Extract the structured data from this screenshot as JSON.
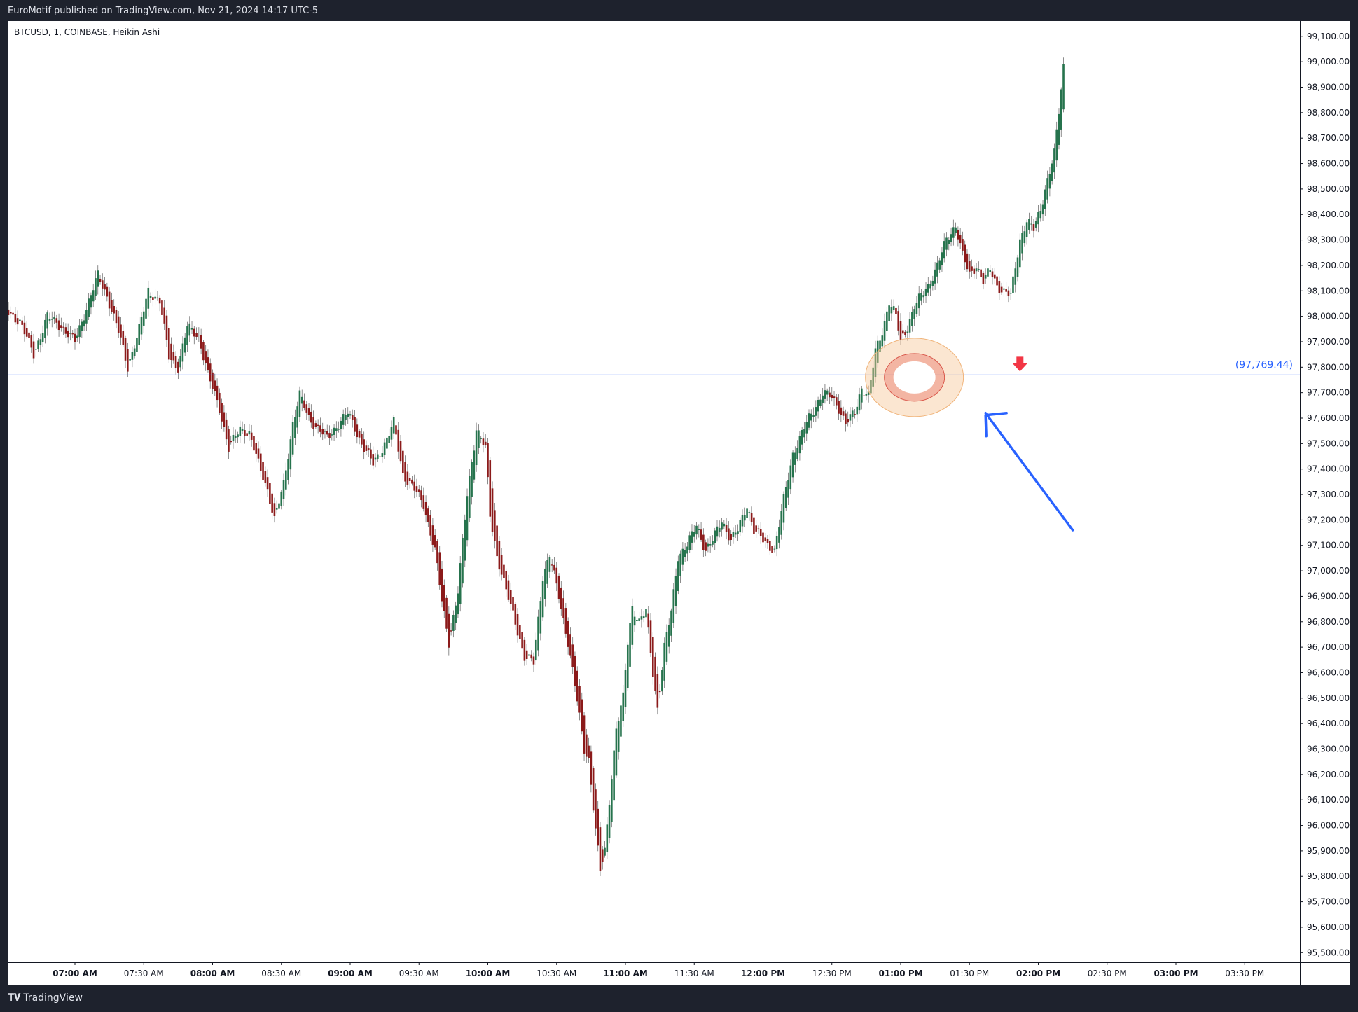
{
  "header": {
    "published_text": "EuroMotif published on TradingView.com, Nov 21, 2024 14:17 UTC-5"
  },
  "footer": {
    "brand": "TradingView",
    "logo_icon": "tradingview-logo-icon"
  },
  "colors": {
    "up": "#26734d",
    "down": "#8b1a1a",
    "level_line": "#2962ff",
    "level_label": "#2962ff",
    "arrow": "#2962ff",
    "marker": "#f23645",
    "highlight_outer": "#f7c79a",
    "highlight_inner": "#e8796a"
  },
  "chart_data": {
    "type": "candlestick",
    "symbol_label": "BTCUSD, 1, COINBASE, Heikin Ashi",
    "style": "Heikin Ashi",
    "interval_minutes": 1,
    "ylim": [
      95410,
      99160
    ],
    "y_ticks": [
      {
        "value": 99100,
        "label": "99,100.00"
      },
      {
        "value": 99000,
        "label": "99,000.00"
      },
      {
        "value": 98900,
        "label": "98,900.00"
      },
      {
        "value": 98800,
        "label": "98,800.00"
      },
      {
        "value": 98700,
        "label": "98,700.00"
      },
      {
        "value": 98600,
        "label": "98,600.00"
      },
      {
        "value": 98500,
        "label": "98,500.00"
      },
      {
        "value": 98400,
        "label": "98,400.00"
      },
      {
        "value": 98300,
        "label": "98,300.00"
      },
      {
        "value": 98200,
        "label": "98,200.00"
      },
      {
        "value": 98100,
        "label": "98,100.00"
      },
      {
        "value": 98000,
        "label": "98,000.00"
      },
      {
        "value": 97900,
        "label": "97,900.00"
      },
      {
        "value": 97800,
        "label": "97,800.00"
      },
      {
        "value": 97700,
        "label": "97,700.00"
      },
      {
        "value": 97600,
        "label": "97,600.00"
      },
      {
        "value": 97500,
        "label": "97,500.00"
      },
      {
        "value": 97400,
        "label": "97,400.00"
      },
      {
        "value": 97300,
        "label": "97,300.00"
      },
      {
        "value": 97200,
        "label": "97,200.00"
      },
      {
        "value": 97100,
        "label": "97,100.00"
      },
      {
        "value": 97000,
        "label": "97,000.00"
      },
      {
        "value": 96900,
        "label": "96,900.00"
      },
      {
        "value": 96800,
        "label": "96,800.00"
      },
      {
        "value": 96700,
        "label": "96,700.00"
      },
      {
        "value": 96600,
        "label": "96,600.00"
      },
      {
        "value": 96500,
        "label": "96,500.00"
      },
      {
        "value": 96400,
        "label": "96,400.00"
      },
      {
        "value": 96300,
        "label": "96,300.00"
      },
      {
        "value": 96200,
        "label": "96,200.00"
      },
      {
        "value": 96100,
        "label": "96,100.00"
      },
      {
        "value": 96000,
        "label": "96,000.00"
      },
      {
        "value": 95900,
        "label": "95,900.00"
      },
      {
        "value": 95800,
        "label": "95,800.00"
      },
      {
        "value": 95700,
        "label": "95,700.00"
      },
      {
        "value": 95600,
        "label": "95,600.00"
      },
      {
        "value": 95500,
        "label": "95,500.00"
      }
    ],
    "x_ticks": [
      {
        "time": "07:00 AM",
        "bold": true
      },
      {
        "time": "07:30 AM",
        "bold": false
      },
      {
        "time": "08:00 AM",
        "bold": true
      },
      {
        "time": "08:30 AM",
        "bold": false
      },
      {
        "time": "09:00 AM",
        "bold": true
      },
      {
        "time": "09:30 AM",
        "bold": false
      },
      {
        "time": "10:00 AM",
        "bold": true
      },
      {
        "time": "10:30 AM",
        "bold": false
      },
      {
        "time": "11:00 AM",
        "bold": true
      },
      {
        "time": "11:30 AM",
        "bold": false
      },
      {
        "time": "12:00 PM",
        "bold": true
      },
      {
        "time": "12:30 PM",
        "bold": false
      },
      {
        "time": "01:00 PM",
        "bold": true
      },
      {
        "time": "01:30 PM",
        "bold": false
      },
      {
        "time": "02:00 PM",
        "bold": true
      },
      {
        "time": "02:30 PM",
        "bold": false
      },
      {
        "time": "03:00 PM",
        "bold": true
      },
      {
        "time": "03:30 PM",
        "bold": false
      }
    ],
    "x_tick_start_minute": 420,
    "x_tick_step_minutes": 30,
    "price_path": [
      {
        "t": "06:30 AM",
        "p": 98020
      },
      {
        "t": "06:36 AM",
        "p": 97980
      },
      {
        "t": "06:42 AM",
        "p": 97850
      },
      {
        "t": "06:48 AM",
        "p": 98000
      },
      {
        "t": "06:54 AM",
        "p": 97960
      },
      {
        "t": "07:00 AM",
        "p": 97900
      },
      {
        "t": "07:06 AM",
        "p": 98060
      },
      {
        "t": "07:10 AM",
        "p": 98160
      },
      {
        "t": "07:14 AM",
        "p": 98080
      },
      {
        "t": "07:19 AM",
        "p": 97940
      },
      {
        "t": "07:23 AM",
        "p": 97800
      },
      {
        "t": "07:28 AM",
        "p": 97950
      },
      {
        "t": "07:32 AM",
        "p": 98100
      },
      {
        "t": "07:37 AM",
        "p": 98060
      },
      {
        "t": "07:41 AM",
        "p": 97840
      },
      {
        "t": "07:45 AM",
        "p": 97800
      },
      {
        "t": "07:49 AM",
        "p": 97960
      },
      {
        "t": "07:54 AM",
        "p": 97920
      },
      {
        "t": "07:58 AM",
        "p": 97770
      },
      {
        "t": "08:03 AM",
        "p": 97640
      },
      {
        "t": "08:07 AM",
        "p": 97480
      },
      {
        "t": "08:12 AM",
        "p": 97560
      },
      {
        "t": "08:16 AM",
        "p": 97540
      },
      {
        "t": "08:20 AM",
        "p": 97420
      },
      {
        "t": "08:24 AM",
        "p": 97320
      },
      {
        "t": "08:27 AM",
        "p": 97200
      },
      {
        "t": "08:31 AM",
        "p": 97340
      },
      {
        "t": "08:35 AM",
        "p": 97580
      },
      {
        "t": "08:38 AM",
        "p": 97690
      },
      {
        "t": "08:42 AM",
        "p": 97600
      },
      {
        "t": "08:46 AM",
        "p": 97560
      },
      {
        "t": "08:50 AM",
        "p": 97520
      },
      {
        "t": "08:55 AM",
        "p": 97580
      },
      {
        "t": "08:59 AM",
        "p": 97620
      },
      {
        "t": "09:05 AM",
        "p": 97500
      },
      {
        "t": "09:10 AM",
        "p": 97420
      },
      {
        "t": "09:14 AM",
        "p": 97480
      },
      {
        "t": "09:19 AM",
        "p": 97580
      },
      {
        "t": "09:23 AM",
        "p": 97380
      },
      {
        "t": "09:28 AM",
        "p": 97320
      },
      {
        "t": "09:32 AM",
        "p": 97260
      },
      {
        "t": "09:37 AM",
        "p": 97080
      },
      {
        "t": "09:40 AM",
        "p": 96880
      },
      {
        "t": "09:43 AM",
        "p": 96720
      },
      {
        "t": "09:47 AM",
        "p": 96920
      },
      {
        "t": "09:51 AM",
        "p": 97300
      },
      {
        "t": "09:55 AM",
        "p": 97560
      },
      {
        "t": "09:59 AM",
        "p": 97480
      },
      {
        "t": "10:01 AM",
        "p": 97220
      },
      {
        "t": "10:04 AM",
        "p": 97060
      },
      {
        "t": "10:08 AM",
        "p": 96920
      },
      {
        "t": "10:12 AM",
        "p": 96800
      },
      {
        "t": "10:16 AM",
        "p": 96660
      },
      {
        "t": "10:20 AM",
        "p": 96640
      },
      {
        "t": "10:24 AM",
        "p": 96980
      },
      {
        "t": "10:27 AM",
        "p": 97060
      },
      {
        "t": "10:31 AM",
        "p": 96900
      },
      {
        "t": "10:35 AM",
        "p": 96720
      },
      {
        "t": "10:38 AM",
        "p": 96550
      },
      {
        "t": "10:42 AM",
        "p": 96300
      },
      {
        "t": "10:44 AM",
        "p": 96260
      },
      {
        "t": "10:47 AM",
        "p": 95980
      },
      {
        "t": "10:49 AM",
        "p": 95820
      },
      {
        "t": "10:51 AM",
        "p": 95900
      },
      {
        "t": "10:53 AM",
        "p": 96100
      },
      {
        "t": "10:56 AM",
        "p": 96380
      },
      {
        "t": "10:59 AM",
        "p": 96500
      },
      {
        "t": "11:01 AM",
        "p": 96720
      },
      {
        "t": "11:03 AM",
        "p": 96860
      },
      {
        "t": "11:06 AM",
        "p": 96800
      },
      {
        "t": "11:09 AM",
        "p": 96840
      },
      {
        "t": "11:12 AM",
        "p": 96600
      },
      {
        "t": "11:14 AM",
        "p": 96460
      },
      {
        "t": "11:17 AM",
        "p": 96700
      },
      {
        "t": "11:20 AM",
        "p": 96840
      },
      {
        "t": "11:23 AM",
        "p": 97060
      },
      {
        "t": "11:27 AM",
        "p": 97100
      },
      {
        "t": "11:31 AM",
        "p": 97180
      },
      {
        "t": "11:35 AM",
        "p": 97080
      },
      {
        "t": "11:38 AM",
        "p": 97120
      },
      {
        "t": "11:42 AM",
        "p": 97200
      },
      {
        "t": "11:46 AM",
        "p": 97120
      },
      {
        "t": "11:49 AM",
        "p": 97160
      },
      {
        "t": "11:53 AM",
        "p": 97260
      },
      {
        "t": "11:56 AM",
        "p": 97160
      },
      {
        "t": "12:00 PM",
        "p": 97120
      },
      {
        "t": "12:05 PM",
        "p": 97080
      },
      {
        "t": "12:09 PM",
        "p": 97280
      },
      {
        "t": "12:13 PM",
        "p": 97460
      },
      {
        "t": "12:17 PM",
        "p": 97540
      },
      {
        "t": "12:20 PM",
        "p": 97600
      },
      {
        "t": "12:23 PM",
        "p": 97650
      },
      {
        "t": "12:26 PM",
        "p": 97700
      },
      {
        "t": "12:30 PM",
        "p": 97680
      },
      {
        "t": "12:33 PM",
        "p": 97640
      },
      {
        "t": "12:36 PM",
        "p": 97580
      },
      {
        "t": "12:40 PM",
        "p": 97620
      },
      {
        "t": "12:43 PM",
        "p": 97720
      },
      {
        "t": "12:46 PM",
        "p": 97690
      },
      {
        "t": "12:49 PM",
        "p": 97860
      },
      {
        "t": "12:52 PM",
        "p": 97940
      },
      {
        "t": "12:55 PM",
        "p": 98060
      },
      {
        "t": "12:58 PM",
        "p": 98000
      },
      {
        "t": "01:00 PM",
        "p": 97900
      },
      {
        "t": "01:03 PM",
        "p": 97960
      },
      {
        "t": "01:06 PM",
        "p": 98040
      },
      {
        "t": "01:09 PM",
        "p": 98080
      },
      {
        "t": "01:12 PM",
        "p": 98120
      },
      {
        "t": "01:16 PM",
        "p": 98200
      },
      {
        "t": "01:20 PM",
        "p": 98300
      },
      {
        "t": "01:24 PM",
        "p": 98360
      },
      {
        "t": "01:27 PM",
        "p": 98240
      },
      {
        "t": "01:30 PM",
        "p": 98160
      },
      {
        "t": "01:33 PM",
        "p": 98200
      },
      {
        "t": "01:36 PM",
        "p": 98140
      },
      {
        "t": "01:39 PM",
        "p": 98180
      },
      {
        "t": "01:42 PM",
        "p": 98120
      },
      {
        "t": "01:45 PM",
        "p": 98100
      },
      {
        "t": "01:48 PM",
        "p": 98080
      },
      {
        "t": "01:52 PM",
        "p": 98300
      },
      {
        "t": "01:55 PM",
        "p": 98380
      },
      {
        "t": "01:58 PM",
        "p": 98340
      },
      {
        "t": "02:01 PM",
        "p": 98420
      },
      {
        "t": "02:04 PM",
        "p": 98540
      },
      {
        "t": "02:07 PM",
        "p": 98640
      },
      {
        "t": "02:09 PM",
        "p": 98800
      },
      {
        "t": "02:11 PM",
        "p": 98980
      }
    ],
    "price_path_points_to_candles": "interpolated at 1-minute interval",
    "horizontal_level": {
      "value": 97769.44,
      "label": "(97,769.44)"
    },
    "annotations": [
      {
        "type": "highlight-circle",
        "time": "01:06 PM",
        "price": 97760
      },
      {
        "type": "down-arrow-marker",
        "time": "01:52 PM",
        "price": 97800
      },
      {
        "type": "arrow",
        "from_time": "02:15 PM",
        "from_price": 97160,
        "to_time": "01:37 PM",
        "to_price": 97620
      }
    ]
  }
}
